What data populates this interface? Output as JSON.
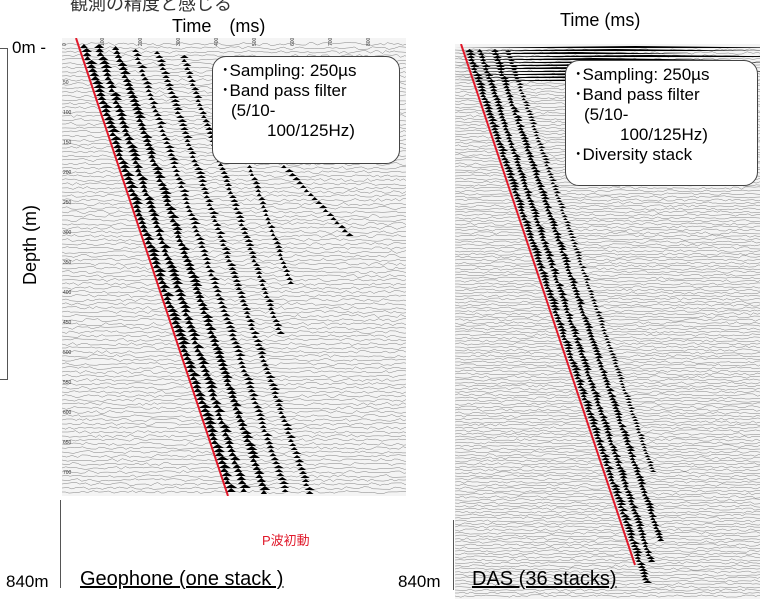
{
  "top_cut_text": "観測の精度と感じる",
  "geophone": {
    "axis_time": "Time　(ms)",
    "axis_depth": "Depth (m)",
    "top_depth": "0m -",
    "bottom_depth": "840m",
    "caption": "Geophone (one stack )",
    "info_lines": [
      "･Sampling: 250µs",
      "･Band pass filter",
      "(5/10-",
      "100/125Hz)"
    ],
    "time_ticks": [
      "0",
      "100",
      "200",
      "300",
      "400",
      "500",
      "600",
      "700",
      "800"
    ],
    "depth_ticks": [
      "50",
      "100",
      "150",
      "200",
      "250",
      "300",
      "350",
      "400",
      "450",
      "500",
      "550",
      "600",
      "650",
      "700"
    ]
  },
  "das": {
    "axis_time": "Time (ms)",
    "bottom_depth": "840m",
    "caption": "DAS (36 stacks)",
    "info_lines": [
      "･Sampling: 250µs",
      "･Band pass filter",
      "(5/10-",
      "100/125Hz)",
      "･Diversity stack"
    ]
  },
  "pwave_label": "P波初動",
  "colors": {
    "first_break": "#e0182a",
    "trace": "#000000",
    "panel_bg": "#f4f4f4"
  }
}
